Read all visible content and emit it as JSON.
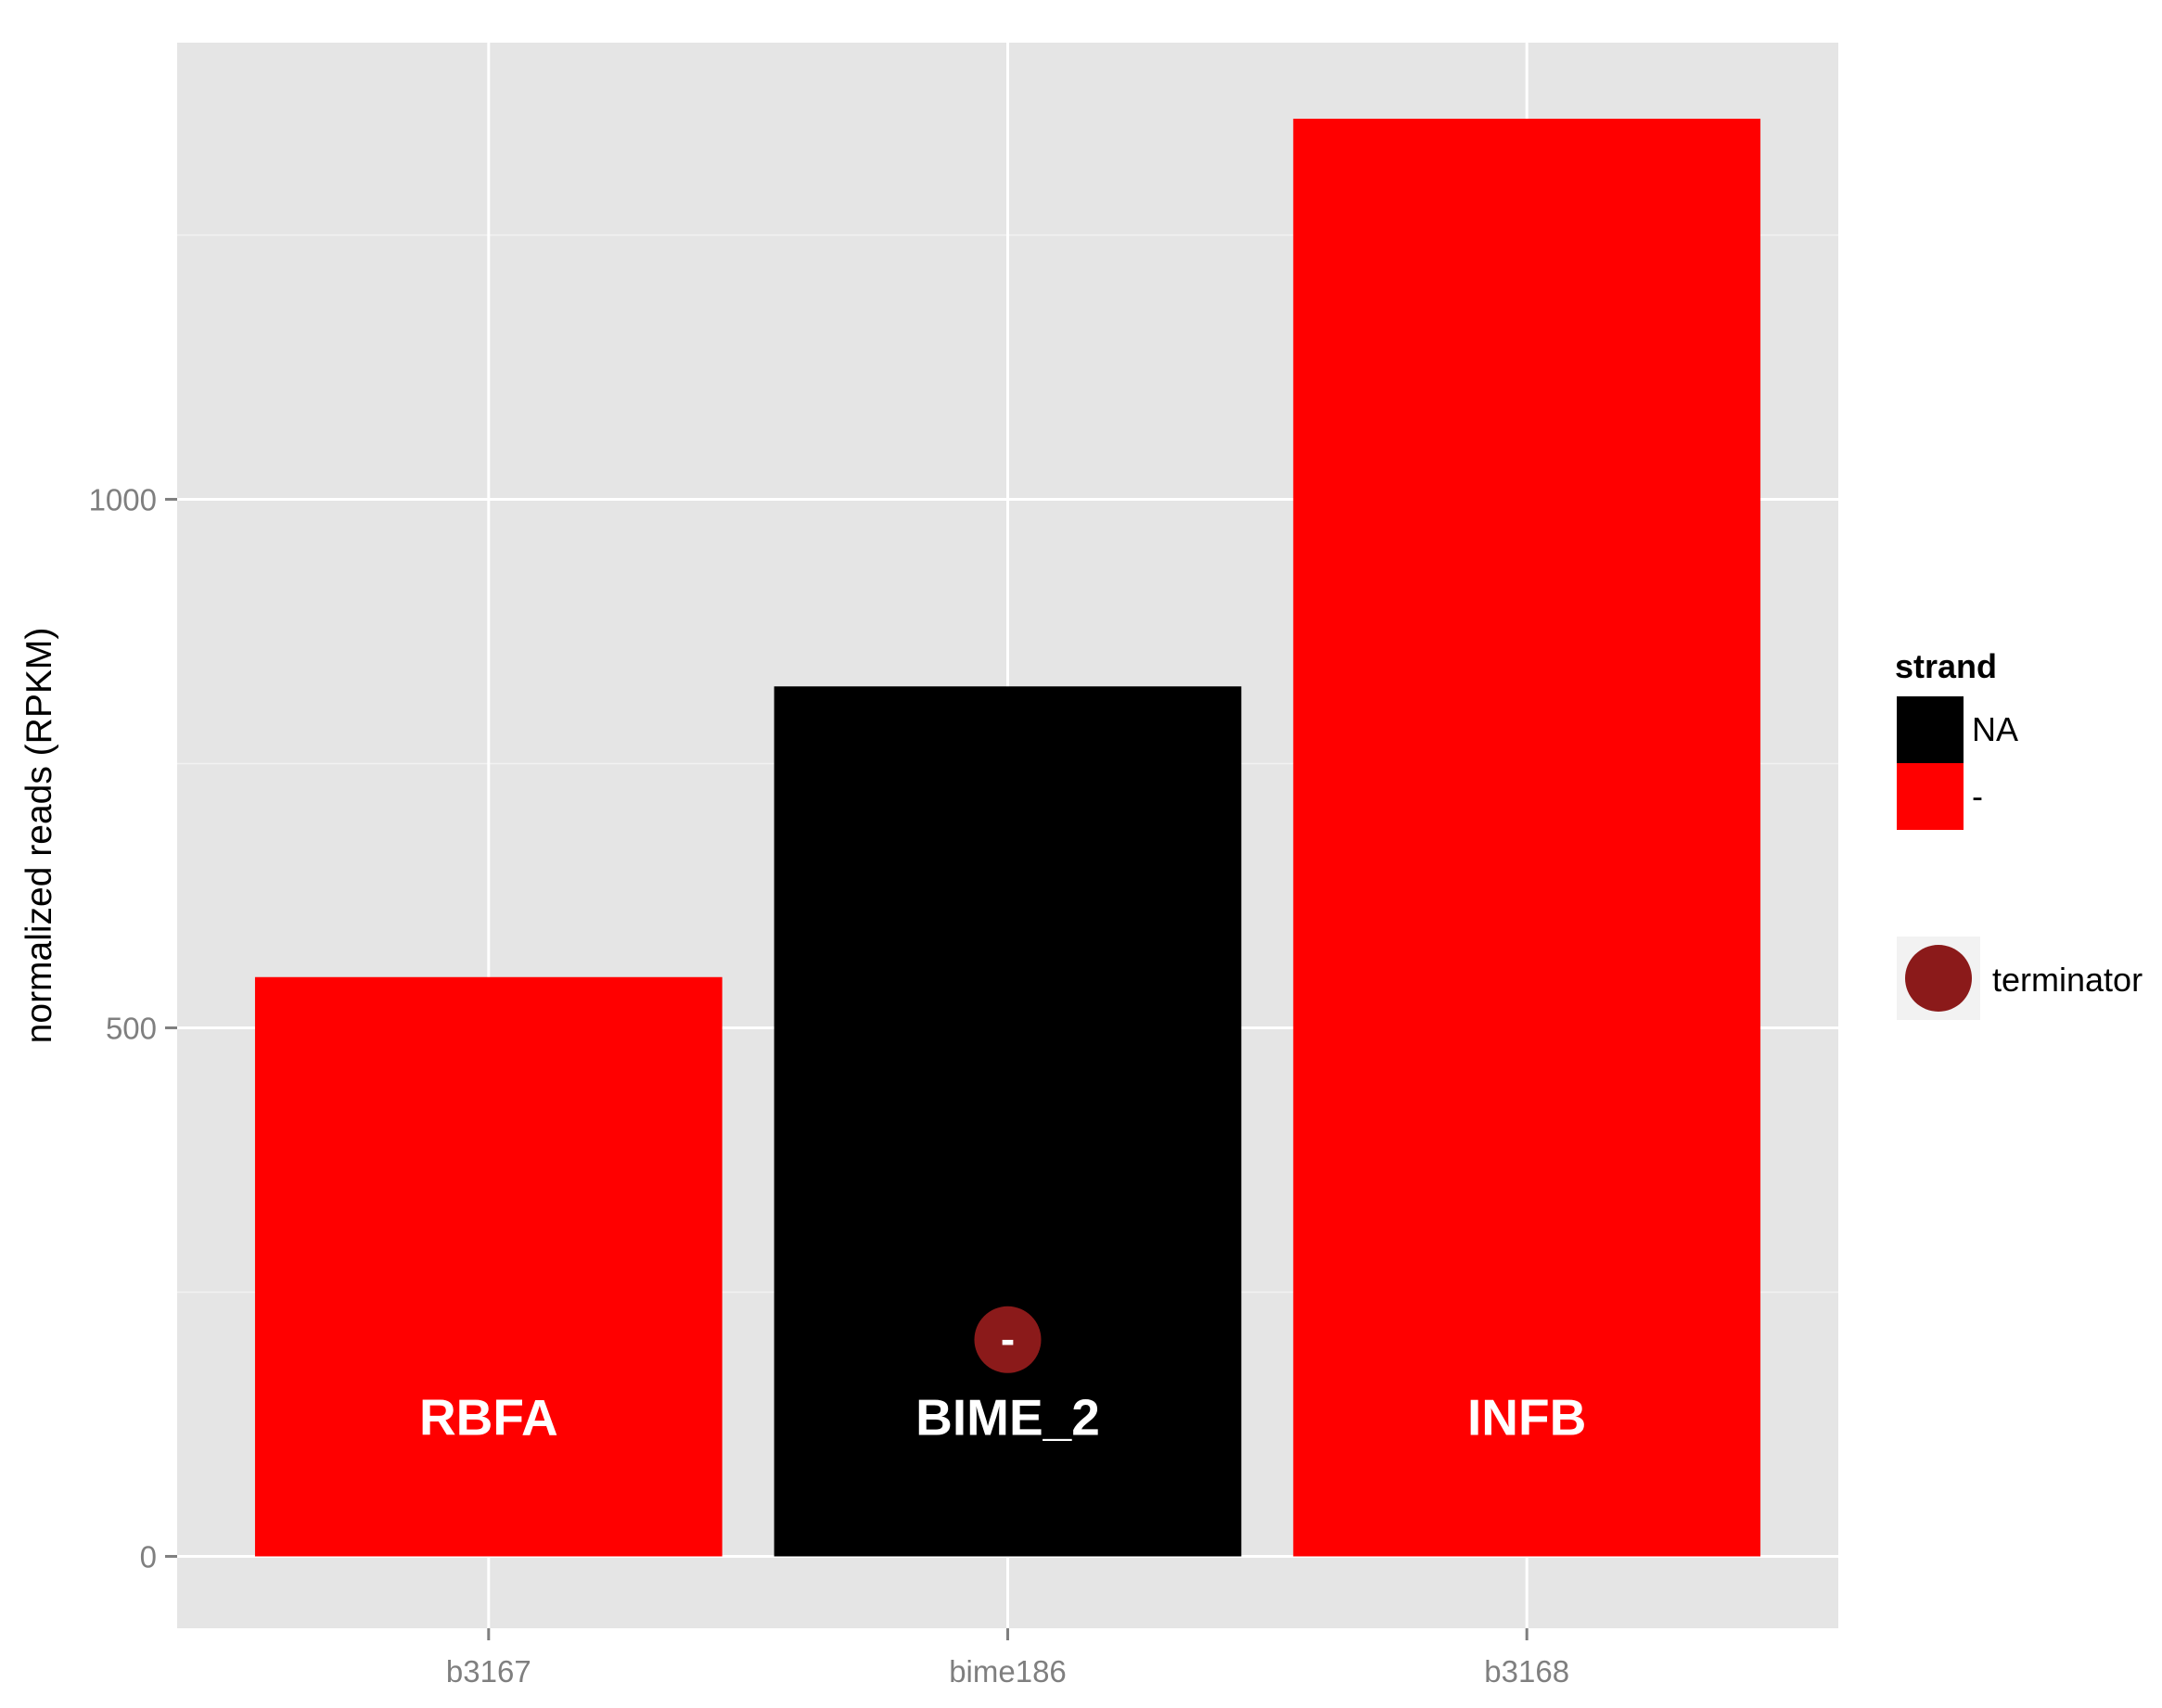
{
  "chart_data": {
    "type": "bar",
    "categories": [
      "b3167",
      "bime186",
      "b3168"
    ],
    "values": [
      548,
      823,
      1360
    ],
    "fills": [
      "-",
      "NA",
      "-"
    ],
    "bar_labels": [
      "RBFA",
      "BIME_2",
      "INFB"
    ],
    "ylabel": "normalized reads (RPKM)",
    "xlabel": "",
    "ylim": [
      -68,
      1432
    ],
    "yticks": [
      0,
      500,
      1000
    ],
    "ytick_labels": [
      "0",
      "500",
      "1000"
    ],
    "minor_yticks": [
      250,
      750,
      1250
    ],
    "grid": true,
    "legend": {
      "title": "strand",
      "placement": "right",
      "entries": [
        {
          "label": "NA",
          "color": "#000000"
        },
        {
          "label": "-",
          "color": "#ff0000"
        }
      ],
      "marker_entry": {
        "label": "terminator",
        "color": "#8b1a1a"
      }
    },
    "annotations": [
      {
        "category": "bime186",
        "y": 205,
        "text": "-",
        "kind": "terminator",
        "color": "#8b1a1a"
      }
    ]
  },
  "colors": {
    "panel_background": "#e5e5e5",
    "grid_line": "#ffffff",
    "strand_NA": "#000000",
    "strand_minus": "#ff0000",
    "terminator": "#8b1a1a"
  }
}
